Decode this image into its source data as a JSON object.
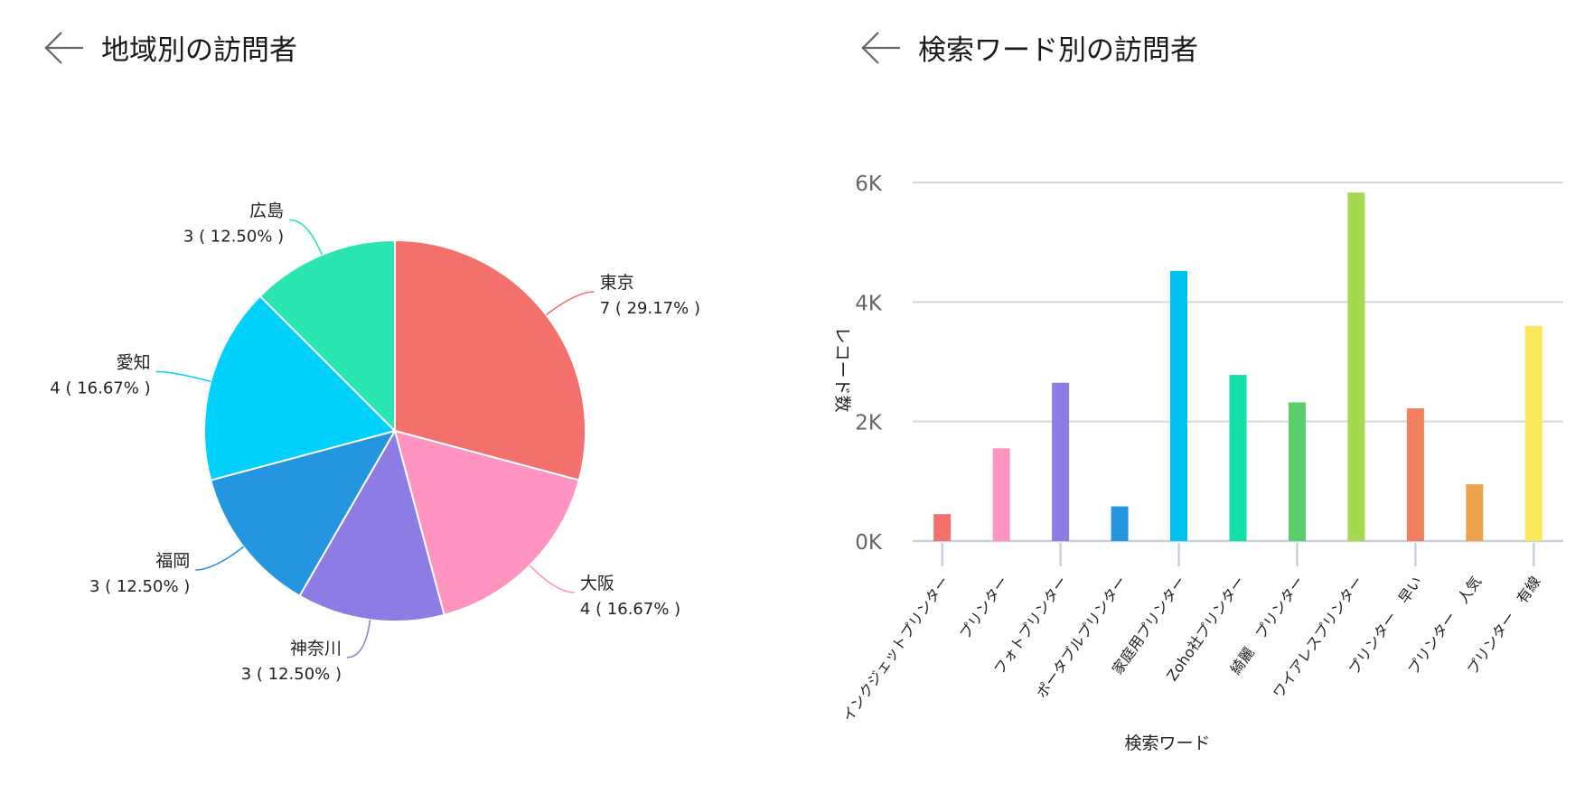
{
  "panels": {
    "left": {
      "title": "地域別の訪問者"
    },
    "right": {
      "title": "検索ワード別の訪問者"
    }
  },
  "chart_data": [
    {
      "type": "pie",
      "title": "地域別の訪問者",
      "slices": [
        {
          "label": "東京",
          "value": 7,
          "percent": "29.17%",
          "value_label": "7 ( 29.17% )",
          "color": "#F4706C"
        },
        {
          "label": "大阪",
          "value": 4,
          "percent": "16.67%",
          "value_label": "4 ( 16.67% )",
          "color": "#FF94C0"
        },
        {
          "label": "神奈川",
          "value": 3,
          "percent": "12.50%",
          "value_label": "3 ( 12.50% )",
          "color": "#8E7BE4"
        },
        {
          "label": "福岡",
          "value": 3,
          "percent": "12.50%",
          "value_label": "3 ( 12.50% )",
          "color": "#2496E0"
        },
        {
          "label": "愛知",
          "value": 4,
          "percent": "16.67%",
          "value_label": "4 ( 16.67% )",
          "color": "#00D0FC"
        },
        {
          "label": "広島",
          "value": 3,
          "percent": "12.50%",
          "value_label": "3 ( 12.50% )",
          "color": "#2BE5B0"
        }
      ]
    },
    {
      "type": "bar",
      "title": "検索ワード別の訪問者",
      "xlabel": "検索ワード",
      "ylabel": "レコード数",
      "ylim": [
        0,
        6000
      ],
      "yticks": [
        {
          "value": 0,
          "label": "0K"
        },
        {
          "value": 2000,
          "label": "2K"
        },
        {
          "value": 4000,
          "label": "4K"
        },
        {
          "value": 6000,
          "label": "6K"
        }
      ],
      "grid": true,
      "categories": [
        "インクジェットプリンター",
        "プリンター",
        "フォトプリンター",
        "ポータブルプリンター",
        "家庭用プリンター",
        "Zoho社プリンター",
        "綺麗　プリンター",
        "ワイアレスプリンター",
        "プリンター　早い",
        "プリンター　人気",
        "プリンター　有線"
      ],
      "values": [
        450,
        1550,
        2650,
        580,
        4520,
        2780,
        2320,
        5830,
        2220,
        950,
        3600
      ],
      "colors": [
        "#F4706C",
        "#FF94C0",
        "#8E7BE4",
        "#2496E0",
        "#00C2F0",
        "#12E0A8",
        "#5ACE6A",
        "#A6D852",
        "#F08060",
        "#ECA24E",
        "#FAE75A"
      ]
    }
  ]
}
